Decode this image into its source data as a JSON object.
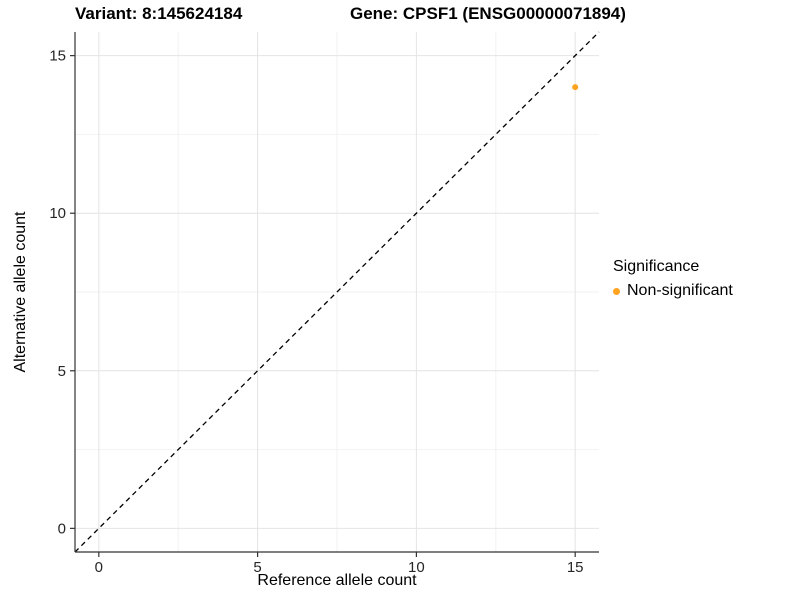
{
  "title": {
    "variant": "Variant: 8:145624184",
    "gene": "Gene: CPSF1 (ENSG00000071894)"
  },
  "axes": {
    "xlabel": "Reference allele count",
    "ylabel": "Alternative allele count"
  },
  "legend": {
    "title": "Significance",
    "position": "right",
    "items": [
      {
        "label": "Non-significant",
        "color": "#FFA320"
      }
    ]
  },
  "colors": {
    "point": "#FFA320",
    "grid_major": "#E4E4E4",
    "grid_minor": "#F2F2F2",
    "axis_line": "#333333",
    "tick_text": "#262626",
    "reference_line": "#000000"
  },
  "chart_data": {
    "type": "scatter",
    "title": "Variant: 8:145624184    Gene: CPSF1 (ENSG00000071894)",
    "xlabel": "Reference allele count",
    "ylabel": "Alternative allele count",
    "xlim": [
      -0.75,
      15.75
    ],
    "ylim": [
      -0.75,
      15.75
    ],
    "x_major_ticks": [
      0,
      5,
      10,
      15
    ],
    "y_major_ticks": [
      0,
      5,
      10,
      15
    ],
    "x_minor_ticks": [
      2.5,
      7.5,
      12.5
    ],
    "y_minor_ticks": [
      2.5,
      7.5,
      12.5
    ],
    "grid": true,
    "legend_position": "right",
    "series": [
      {
        "name": "Non-significant",
        "color": "#FFA320",
        "points": [
          {
            "x": 15,
            "y": 14
          }
        ]
      }
    ],
    "reference_line": {
      "slope": 1,
      "intercept": 0,
      "style": "dashed",
      "color": "#000000",
      "meaning": "identity line y = x"
    }
  }
}
